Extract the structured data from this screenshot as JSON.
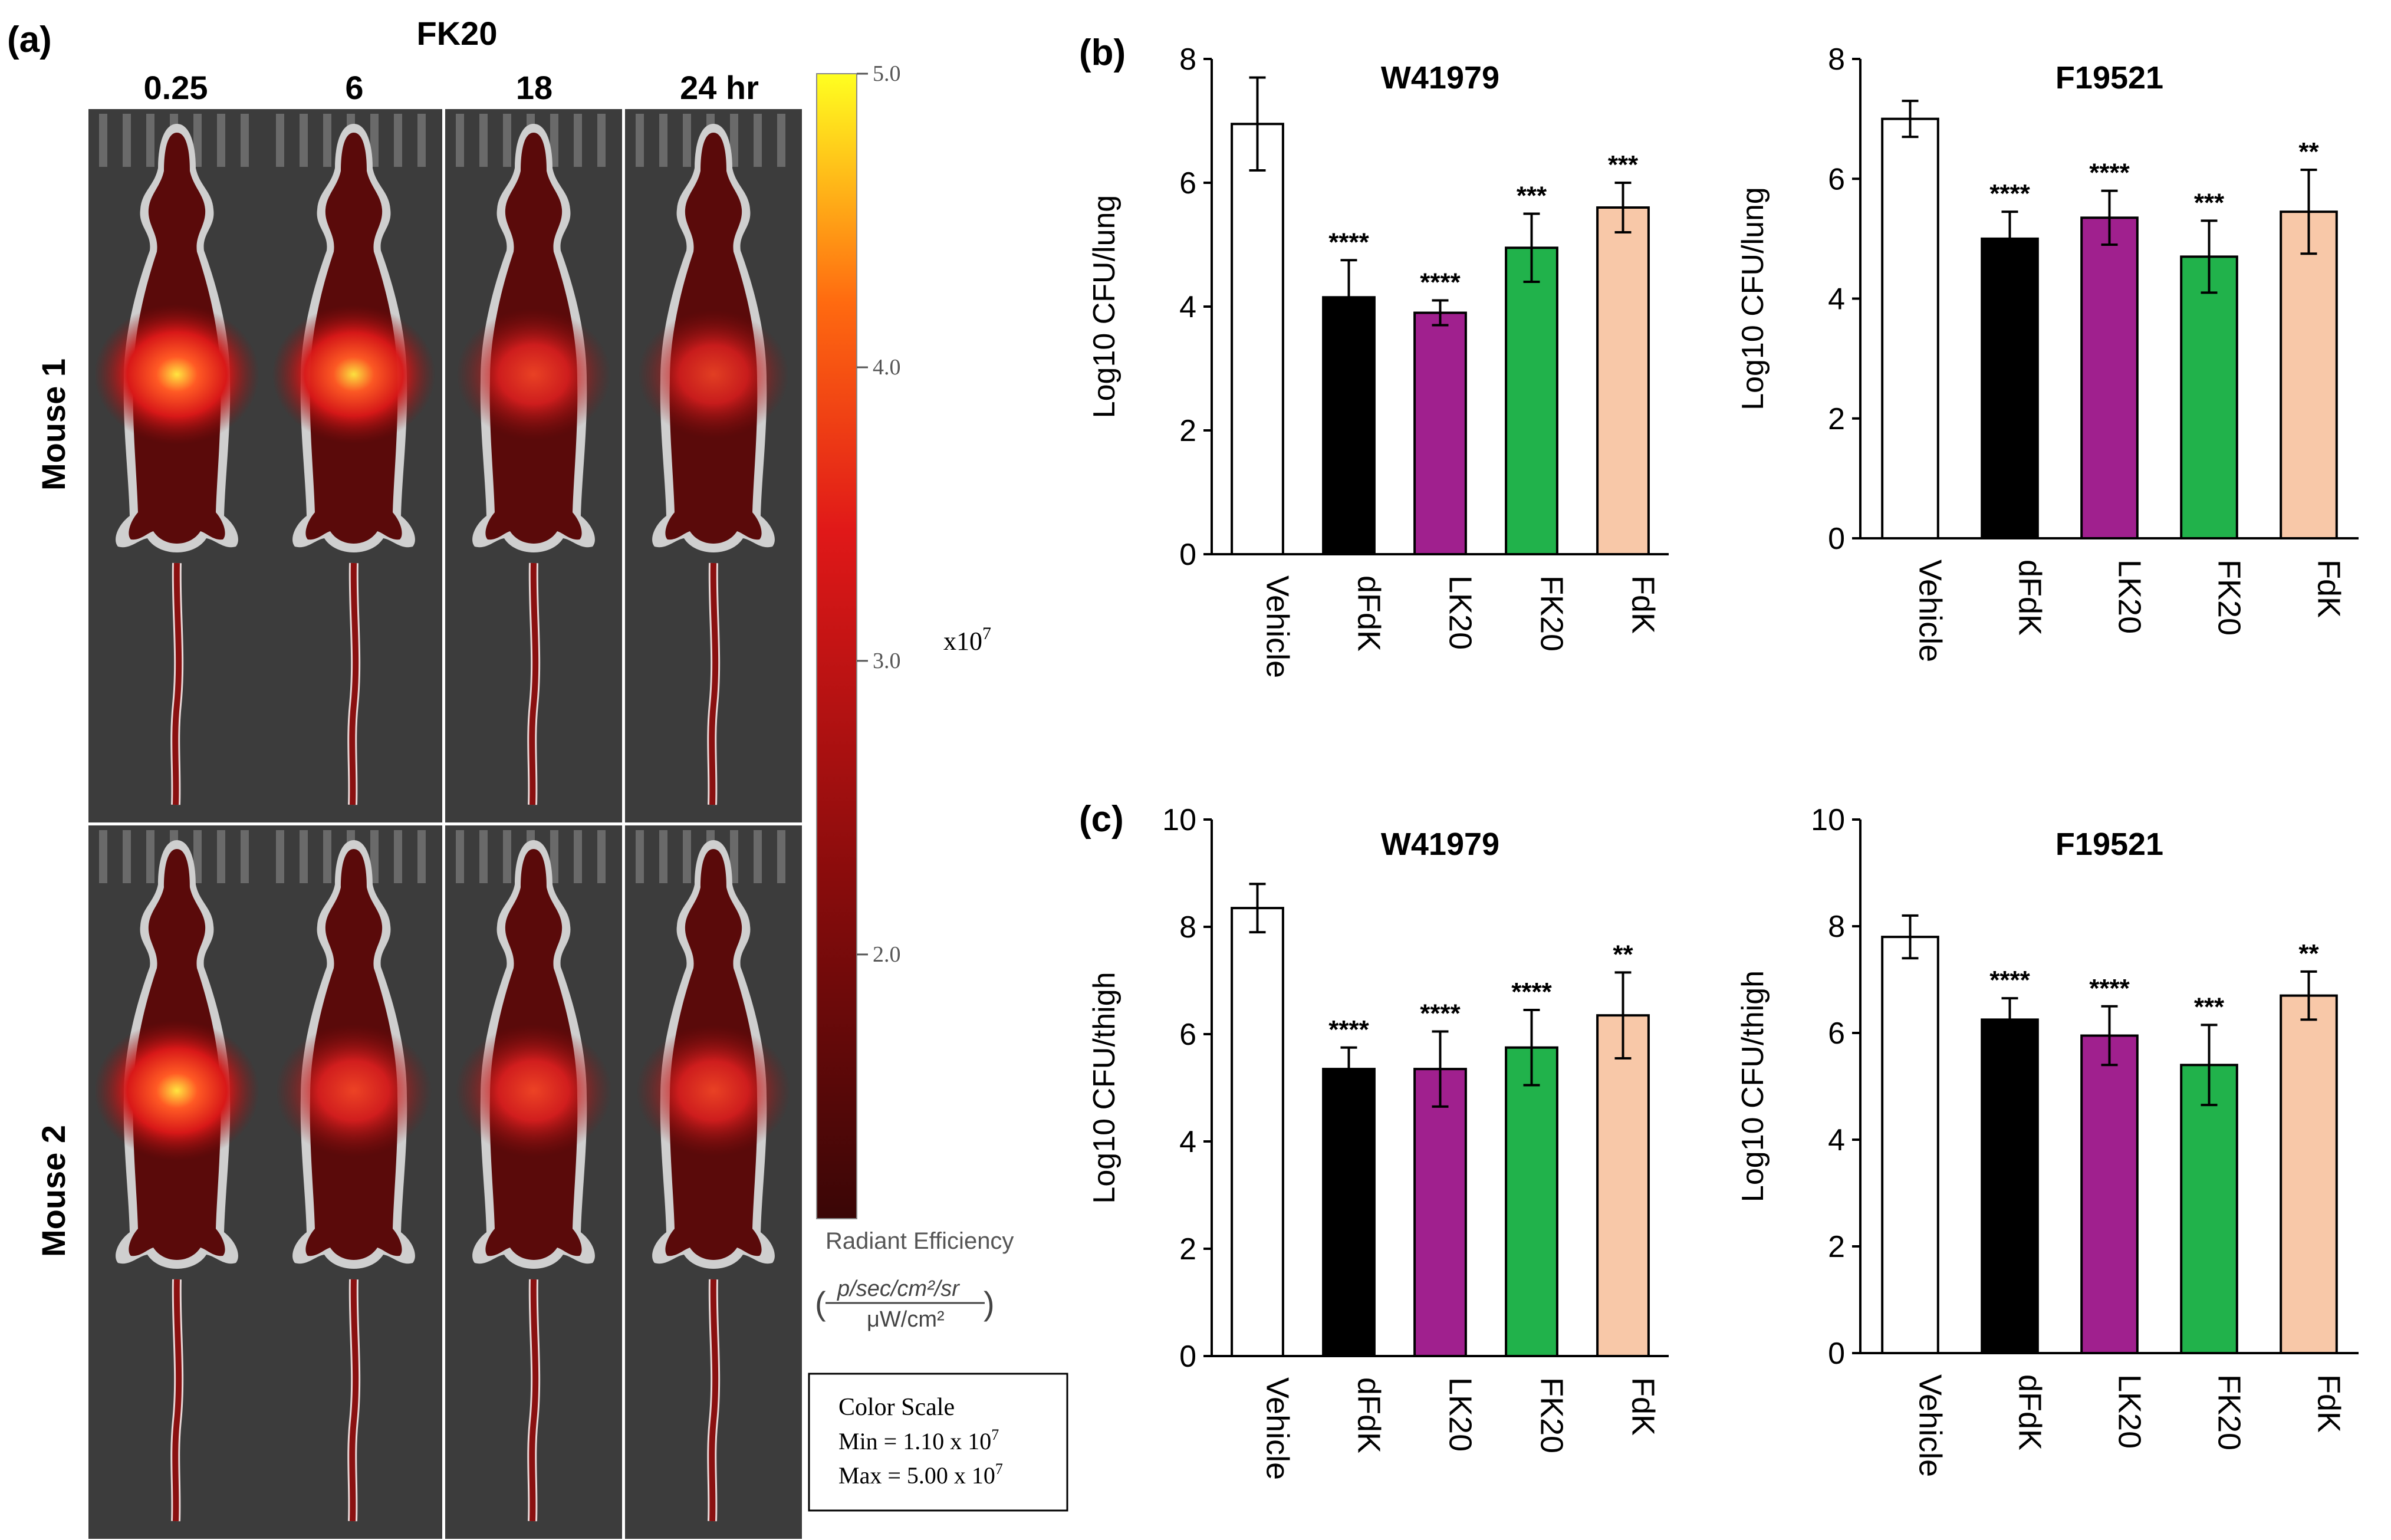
{
  "panel_a": {
    "label": "(a)",
    "compound": "FK20",
    "timepoints": [
      "0.25",
      "6",
      "18",
      "24 hr"
    ],
    "rows": [
      "Mouse 1",
      "Mouse 2"
    ],
    "intensities": [
      [
        1.0,
        0.95,
        0.7,
        0.6
      ],
      [
        1.0,
        0.75,
        0.75,
        0.7
      ]
    ],
    "colorbar": {
      "ticks": [
        "5.0",
        "4.0",
        "3.0",
        "2.0"
      ],
      "tick_values": [
        5.0,
        4.0,
        3.0,
        2.0
      ],
      "range": [
        1.1,
        5.0
      ],
      "multiplier": "x10",
      "multiplier_exp": "7",
      "title": "Radiant Efficiency",
      "unit_numerator": "p/sec/cm²/sr",
      "unit_denominator": "μW/cm²"
    },
    "color_scale_box": {
      "title": "Color Scale",
      "min_label": "Min = 1.10 x 10",
      "max_label": "Max = 5.00 x 10",
      "exponent": "7"
    },
    "colors": {
      "tissue": "#5a0a0a",
      "background": "#3c3c3c",
      "fur": "#cfcfcf",
      "hot": "#ff3a24",
      "hottest": "#ffe640"
    }
  },
  "chart_data": [
    {
      "type": "bar",
      "panel_label": "(b)",
      "title": "W41979",
      "ylabel": "Log10 CFU/lung",
      "ylim": [
        0,
        8
      ],
      "yticks": [
        0,
        2,
        4,
        6,
        8
      ],
      "categories": [
        "Vehicle",
        "dFdK",
        "LK20",
        "FK20",
        "FdK"
      ],
      "values": [
        6.95,
        4.15,
        3.9,
        4.95,
        5.6
      ],
      "errors": [
        0.75,
        0.6,
        0.2,
        0.55,
        0.4
      ],
      "significance": [
        "",
        "****",
        "****",
        "***",
        "***"
      ],
      "colors": [
        "#ffffff",
        "#000000",
        "#a0208e",
        "#21b24b",
        "#f8c8a8"
      ]
    },
    {
      "type": "bar",
      "panel_label": "",
      "title": "F19521",
      "ylabel": "Log10 CFU/lung",
      "ylim": [
        0,
        8
      ],
      "yticks": [
        0,
        2,
        4,
        6,
        8
      ],
      "categories": [
        "Vehicle",
        "dFdK",
        "LK20",
        "FK20",
        "FdK"
      ],
      "values": [
        7.0,
        5.0,
        5.35,
        4.7,
        5.45
      ],
      "errors": [
        0.3,
        0.45,
        0.45,
        0.6,
        0.7
      ],
      "significance": [
        "",
        "****",
        "****",
        "***",
        "**"
      ],
      "colors": [
        "#ffffff",
        "#000000",
        "#a0208e",
        "#21b24b",
        "#f8c8a8"
      ]
    },
    {
      "type": "bar",
      "panel_label": "(c)",
      "title": "W41979",
      "ylabel": "Log10 CFU/thigh",
      "ylim": [
        0,
        10
      ],
      "yticks": [
        0,
        2,
        4,
        6,
        8,
        10
      ],
      "categories": [
        "Vehicle",
        "dFdK",
        "LK20",
        "FK20",
        "FdK"
      ],
      "values": [
        8.35,
        5.35,
        5.35,
        5.75,
        6.35
      ],
      "errors": [
        0.45,
        0.4,
        0.7,
        0.7,
        0.8
      ],
      "significance": [
        "",
        "****",
        "****",
        "****",
        "**"
      ],
      "colors": [
        "#ffffff",
        "#000000",
        "#a0208e",
        "#21b24b",
        "#f8c8a8"
      ]
    },
    {
      "type": "bar",
      "panel_label": "",
      "title": "F19521",
      "ylabel": "Log10 CFU/thigh",
      "ylim": [
        0,
        10
      ],
      "yticks": [
        0,
        2,
        4,
        6,
        8,
        10
      ],
      "categories": [
        "Vehicle",
        "dFdK",
        "LK20",
        "FK20",
        "FdK"
      ],
      "values": [
        7.8,
        6.25,
        5.95,
        5.4,
        6.7
      ],
      "errors": [
        0.4,
        0.4,
        0.55,
        0.75,
        0.45
      ],
      "significance": [
        "",
        "****",
        "****",
        "***",
        "**"
      ],
      "colors": [
        "#ffffff",
        "#000000",
        "#a0208e",
        "#21b24b",
        "#f8c8a8"
      ]
    }
  ]
}
